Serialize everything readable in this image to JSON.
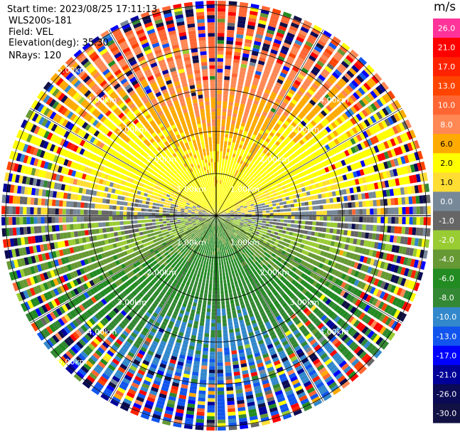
{
  "header": {
    "start_time": "Start time: 2023/08/25 17:11:13",
    "site": "WLS200s-181",
    "field": "Field: VEL",
    "elevation": "Elevation(deg): 35.30",
    "nrays": "NRays: 120"
  },
  "chart_data": {
    "type": "heatmap",
    "projection": "polar-ppi",
    "field": "VEL",
    "units": "m/s",
    "nrays": 120,
    "range_rings_km": [
      1,
      2,
      3,
      4,
      5
    ],
    "range_ring_labels": [
      "1.00km",
      "2.00km",
      "3.00km",
      "4.00km",
      "5.00km"
    ],
    "max_range_km": 5.0,
    "colorbar": {
      "unit": "m/s",
      "ticks": [
        "26.0",
        "21.0",
        "17.0",
        "13.0",
        "10.0",
        "8.0",
        "6.0",
        "2.0",
        "1.0",
        "0.0",
        "-1.0",
        "-2.0",
        "-4.0",
        "-6.0",
        "-8.0",
        "-10.0",
        "-13.0",
        "-17.0",
        "-21.0",
        "-26.0",
        "-30.0"
      ],
      "colors": [
        "#ff3399",
        "#ff0000",
        "#ff2200",
        "#ff4400",
        "#ff6633",
        "#ff8855",
        "#ffaa00",
        "#ffff00",
        "#ffdd33",
        "#778899",
        "#666666",
        "#99cc33",
        "#669933",
        "#228b22",
        "#338833",
        "#3388cc",
        "#1155ee",
        "#0000ff",
        "#000099",
        "#0a0a55",
        "#111144"
      ]
    },
    "pattern_note": "North sector positive (orange/red, away); south sector negative (green/blue, toward); near-zero grey band along east-west."
  }
}
